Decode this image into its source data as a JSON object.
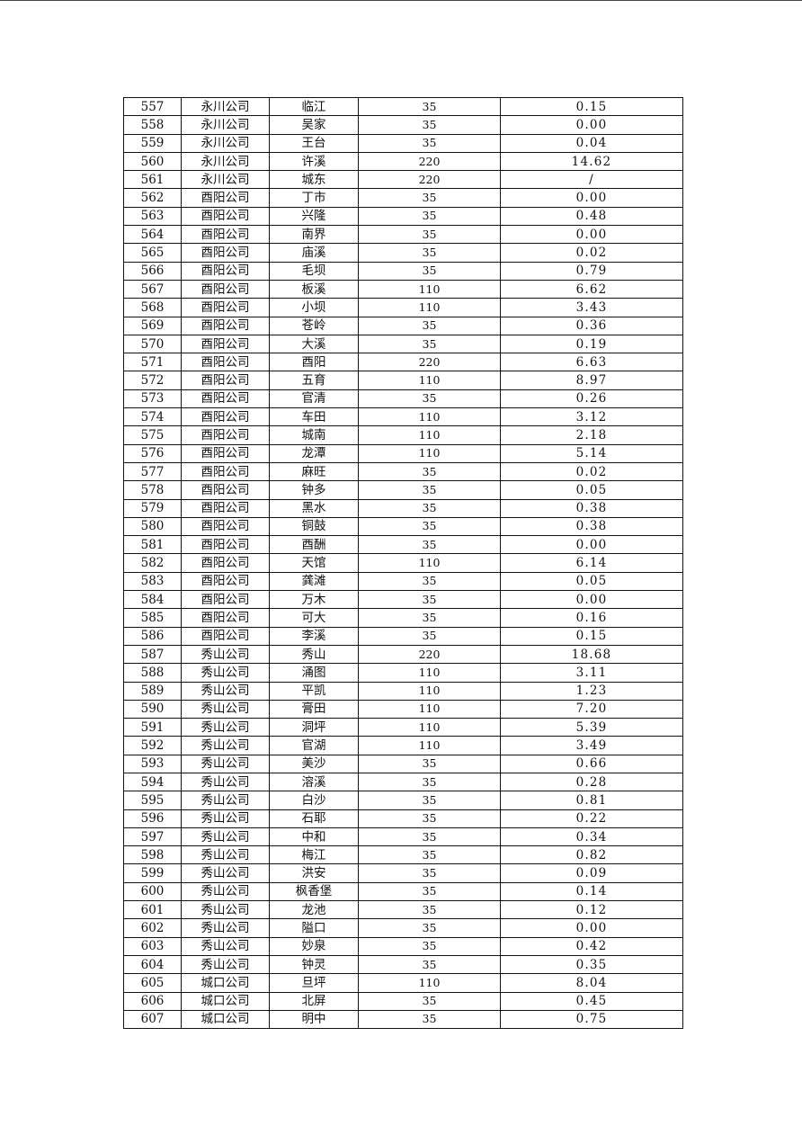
{
  "table": {
    "rows": [
      [
        "557",
        "永川公司",
        "临江",
        "35",
        "0.15"
      ],
      [
        "558",
        "永川公司",
        "吴家",
        "35",
        "0.00"
      ],
      [
        "559",
        "永川公司",
        "王台",
        "35",
        "0.04"
      ],
      [
        "560",
        "永川公司",
        "许溪",
        "220",
        "14.62"
      ],
      [
        "561",
        "永川公司",
        "城东",
        "220",
        "/"
      ],
      [
        "562",
        "酉阳公司",
        "丁市",
        "35",
        "0.00"
      ],
      [
        "563",
        "酉阳公司",
        "兴隆",
        "35",
        "0.48"
      ],
      [
        "564",
        "酉阳公司",
        "南界",
        "35",
        "0.00"
      ],
      [
        "565",
        "酉阳公司",
        "庙溪",
        "35",
        "0.02"
      ],
      [
        "566",
        "酉阳公司",
        "毛坝",
        "35",
        "0.79"
      ],
      [
        "567",
        "酉阳公司",
        "板溪",
        "110",
        "6.62"
      ],
      [
        "568",
        "酉阳公司",
        "小坝",
        "110",
        "3.43"
      ],
      [
        "569",
        "酉阳公司",
        "苍岭",
        "35",
        "0.36"
      ],
      [
        "570",
        "酉阳公司",
        "大溪",
        "35",
        "0.19"
      ],
      [
        "571",
        "酉阳公司",
        "酉阳",
        "220",
        "6.63"
      ],
      [
        "572",
        "酉阳公司",
        "五育",
        "110",
        "8.97"
      ],
      [
        "573",
        "酉阳公司",
        "官清",
        "35",
        "0.26"
      ],
      [
        "574",
        "酉阳公司",
        "车田",
        "110",
        "3.12"
      ],
      [
        "575",
        "酉阳公司",
        "城南",
        "110",
        "2.18"
      ],
      [
        "576",
        "酉阳公司",
        "龙潭",
        "110",
        "5.14"
      ],
      [
        "577",
        "酉阳公司",
        "麻旺",
        "35",
        "0.02"
      ],
      [
        "578",
        "酉阳公司",
        "钟多",
        "35",
        "0.05"
      ],
      [
        "579",
        "酉阳公司",
        "黑水",
        "35",
        "0.38"
      ],
      [
        "580",
        "酉阳公司",
        "铜鼓",
        "35",
        "0.38"
      ],
      [
        "581",
        "酉阳公司",
        "酉酬",
        "35",
        "0.00"
      ],
      [
        "582",
        "酉阳公司",
        "天馆",
        "110",
        "6.14"
      ],
      [
        "583",
        "酉阳公司",
        "龚滩",
        "35",
        "0.05"
      ],
      [
        "584",
        "酉阳公司",
        "万木",
        "35",
        "0.00"
      ],
      [
        "585",
        "酉阳公司",
        "可大",
        "35",
        "0.16"
      ],
      [
        "586",
        "酉阳公司",
        "李溪",
        "35",
        "0.15"
      ],
      [
        "587",
        "秀山公司",
        "秀山",
        "220",
        "18.68"
      ],
      [
        "588",
        "秀山公司",
        "涌图",
        "110",
        "3.11"
      ],
      [
        "589",
        "秀山公司",
        "平凯",
        "110",
        "1.23"
      ],
      [
        "590",
        "秀山公司",
        "膏田",
        "110",
        "7.20"
      ],
      [
        "591",
        "秀山公司",
        "洞坪",
        "110",
        "5.39"
      ],
      [
        "592",
        "秀山公司",
        "官湖",
        "110",
        "3.49"
      ],
      [
        "593",
        "秀山公司",
        "美沙",
        "35",
        "0.66"
      ],
      [
        "594",
        "秀山公司",
        "溶溪",
        "35",
        "0.28"
      ],
      [
        "595",
        "秀山公司",
        "白沙",
        "35",
        "0.81"
      ],
      [
        "596",
        "秀山公司",
        "石耶",
        "35",
        "0.22"
      ],
      [
        "597",
        "秀山公司",
        "中和",
        "35",
        "0.34"
      ],
      [
        "598",
        "秀山公司",
        "梅江",
        "35",
        "0.82"
      ],
      [
        "599",
        "秀山公司",
        "洪安",
        "35",
        "0.09"
      ],
      [
        "600",
        "秀山公司",
        "枫香堡",
        "35",
        "0.14"
      ],
      [
        "601",
        "秀山公司",
        "龙池",
        "35",
        "0.12"
      ],
      [
        "602",
        "秀山公司",
        "隘口",
        "35",
        "0.00"
      ],
      [
        "603",
        "秀山公司",
        "妙泉",
        "35",
        "0.42"
      ],
      [
        "604",
        "秀山公司",
        "钟灵",
        "35",
        "0.35"
      ],
      [
        "605",
        "城口公司",
        "旦坪",
        "110",
        "8.04"
      ],
      [
        "606",
        "城口公司",
        "北屏",
        "35",
        "0.45"
      ],
      [
        "607",
        "城口公司",
        "明中",
        "35",
        "0.75"
      ]
    ]
  }
}
